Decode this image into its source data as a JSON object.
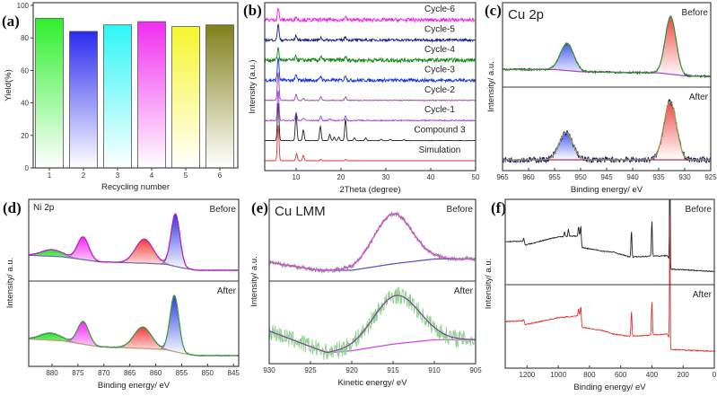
{
  "chart_data": [
    {
      "panel_label": "(a)",
      "type": "bar",
      "categories": [
        "1",
        "2",
        "3",
        "4",
        "5",
        "6"
      ],
      "values": [
        92,
        84,
        88,
        90,
        87,
        88
      ],
      "colors": [
        "#22ee22",
        "#2020ee",
        "#22f5f5",
        "#f022f0",
        "#f5f522",
        "#7a7a10"
      ],
      "xlabel": "Recycling number",
      "ylabel": "Yield(%)",
      "ylim": [
        0,
        100
      ],
      "yticks": [
        "0",
        "20",
        "40",
        "60",
        "80",
        "100"
      ],
      "grid": false
    },
    {
      "panel_label": "(b)",
      "type": "line",
      "xlabel": "2Theta (degree)",
      "ylabel": "Intensity (a.u.)",
      "xlim": [
        3,
        50
      ],
      "xticks": [
        "10",
        "20",
        "30",
        "40",
        "50"
      ],
      "grid": false,
      "series": [
        {
          "name": "Simulation",
          "color": "#e03030",
          "noise": 0.0,
          "peaks": [
            [
              6,
              2.0
            ],
            [
              10.1,
              0.4
            ],
            [
              11.6,
              0.3
            ],
            [
              15.5,
              0.08
            ],
            [
              21.1,
              0.07
            ]
          ]
        },
        {
          "name": "Compound 3",
          "color": "#222222",
          "noise": 0.01,
          "peaks": [
            [
              6,
              2.1
            ],
            [
              10,
              1.5
            ],
            [
              11.6,
              0.6
            ],
            [
              15.4,
              0.8
            ],
            [
              17.5,
              0.35
            ],
            [
              18.5,
              0.2
            ],
            [
              19.5,
              0.2
            ],
            [
              21,
              1.2
            ],
            [
              23,
              0.15
            ],
            [
              25.5,
              0.15
            ],
            [
              29,
              0.08
            ],
            [
              31,
              0.08
            ],
            [
              34,
              0.06
            ]
          ]
        },
        {
          "name": "Cycle-1",
          "color": "#9a40f0",
          "noise": 0.03,
          "peaks": [
            [
              6,
              1.7
            ],
            [
              10,
              0.45
            ],
            [
              11.6,
              0.15
            ],
            [
              15.5,
              0.25
            ],
            [
              17.5,
              0.1
            ],
            [
              21,
              0.25
            ]
          ]
        },
        {
          "name": "Cycle-2",
          "color": "#a040b0",
          "noise": 0.02,
          "peaks": [
            [
              6,
              1.6
            ],
            [
              10,
              0.35
            ],
            [
              11.6,
              0.12
            ],
            [
              15.5,
              0.2
            ],
            [
              21,
              0.2
            ]
          ]
        },
        {
          "name": "Cycle-3",
          "color": "#1030e0",
          "noise": 0.09,
          "peaks": [
            [
              6,
              1.3
            ],
            [
              10,
              0.3
            ],
            [
              15.5,
              0.25
            ],
            [
              21,
              0.3
            ]
          ]
        },
        {
          "name": "Cycle-4",
          "color": "#108a10",
          "noise": 0.11,
          "peaks": [
            [
              6,
              0.7
            ],
            [
              10,
              0.2
            ],
            [
              15.5,
              0.2
            ],
            [
              21,
              0.2
            ]
          ]
        },
        {
          "name": "Cycle-5",
          "color": "#102080",
          "noise": 0.07,
          "peaks": [
            [
              6,
              0.9
            ],
            [
              10,
              0.25
            ],
            [
              15.5,
              0.15
            ],
            [
              21,
              0.2
            ]
          ]
        },
        {
          "name": "Cycle-6",
          "color": "#f020e0",
          "noise": 0.1,
          "peaks": [
            [
              6,
              0.65
            ],
            [
              10,
              0.2
            ],
            [
              21,
              0.2
            ]
          ]
        }
      ]
    },
    {
      "panel_label": "(c)",
      "type": "line",
      "title": "Cu 2p",
      "xlabel": "Binding energy/ eV",
      "ylabel": "Intensity/ a.u.",
      "xlim": [
        965,
        925
      ],
      "xticks": [
        "965",
        "960",
        "955",
        "950",
        "945",
        "940",
        "935",
        "930",
        "925"
      ],
      "grid": false,
      "panels": [
        {
          "label": "Before",
          "raw_color": "#1a1a1a",
          "fit_color": "#3a9a3a",
          "bg_color": "#b040d0",
          "noise": 0.015,
          "background": [
            [
              965,
              0.12
            ],
            [
              955,
              0.12
            ],
            [
              950,
              0.08
            ],
            [
              935,
              0.06
            ],
            [
              930,
              0.01
            ],
            [
              925,
              0.0
            ]
          ],
          "peaks": [
            {
              "center": 952.6,
              "height": 0.47,
              "width": 1.3,
              "color": "#4055f0"
            },
            {
              "center": 932.7,
              "height": 1.0,
              "width": 1.05,
              "color": "#f04040"
            }
          ]
        },
        {
          "label": "After",
          "raw_color": "#1a1a80",
          "fit_color": "#a0a040",
          "bg_color": "#c03050",
          "noise": 0.04,
          "background": [
            [
              965,
              0.08
            ],
            [
              925,
              0.08
            ]
          ],
          "peaks": [
            {
              "center": 952.8,
              "height": 0.37,
              "width": 1.3,
              "color": "#4055f0"
            },
            {
              "center": 932.8,
              "height": 0.8,
              "width": 1.2,
              "color": "#f04040"
            }
          ]
        }
      ]
    },
    {
      "panel_label": "(d)",
      "type": "line",
      "title": "Ni 2p",
      "xlabel": "Binding energy/ eV",
      "ylabel": "Intensity/ a.u.",
      "xlim": [
        884.5,
        844
      ],
      "xticks": [
        "880",
        "875",
        "870",
        "865",
        "860",
        "855",
        "850",
        "845"
      ],
      "grid": false,
      "panels": [
        {
          "label": "Before",
          "raw_color": "#3a2a90",
          "fit_color": "#c020c0",
          "bg_color": "#6a70b0",
          "noise": 0.008,
          "background": [
            [
              884.5,
              0.3
            ],
            [
              878,
              0.27
            ],
            [
              871,
              0.17
            ],
            [
              862,
              0.14
            ],
            [
              858,
              0.12
            ],
            [
              855,
              0.05
            ],
            [
              852,
              0.0
            ],
            [
              844,
              0.0
            ]
          ],
          "peaks": [
            {
              "center": 880,
              "height": 0.13,
              "width": 2.0,
              "color": "#20e020"
            },
            {
              "center": 874,
              "height": 0.45,
              "width": 1.1,
              "color": "#f020f0"
            },
            {
              "center": 862.2,
              "height": 0.48,
              "width": 1.7,
              "color": "#f03030"
            },
            {
              "center": 856.2,
              "height": 1.05,
              "width": 0.85,
              "color": "#2030e0"
            }
          ]
        },
        {
          "label": "After",
          "raw_color": "#303070",
          "fit_color": "#40a040",
          "bg_color": "#c0a070",
          "noise": 0.008,
          "background": [
            [
              884.5,
              0.28
            ],
            [
              878,
              0.25
            ],
            [
              871,
              0.15
            ],
            [
              862,
              0.12
            ],
            [
              858,
              0.1
            ],
            [
              855,
              0.04
            ],
            [
              852,
              0.0
            ],
            [
              844,
              0.0
            ]
          ],
          "peaks": [
            {
              "center": 880.3,
              "height": 0.12,
              "width": 2.0,
              "color": "#20e020"
            },
            {
              "center": 874,
              "height": 0.38,
              "width": 1.1,
              "color": "#f020f0"
            },
            {
              "center": 862.5,
              "height": 0.36,
              "width": 1.7,
              "color": "#f03030"
            },
            {
              "center": 856.4,
              "height": 0.95,
              "width": 0.85,
              "color": "#2030e0"
            }
          ]
        }
      ]
    },
    {
      "panel_label": "(e)",
      "type": "line",
      "title": "Cu LMM",
      "xlabel": "Kinetic energy/ eV",
      "ylabel": "Intensity/ a.u.",
      "xlim": [
        930,
        905
      ],
      "xticks": [
        "930",
        "925",
        "920",
        "915",
        "910",
        "905"
      ],
      "grid": false,
      "panels": [
        {
          "label": "Before",
          "raw_color": "#909090",
          "fit_color": "#e040e0",
          "bg_color": "#5050c0",
          "noise": 0.03,
          "background": [
            [
              930,
              0.22
            ],
            [
              924,
              0.12
            ],
            [
              920,
              0.12
            ],
            [
              915,
              0.2
            ],
            [
              910,
              0.26
            ],
            [
              905,
              0.26
            ]
          ],
          "peaks": [
            {
              "center": 915,
              "height": 0.62,
              "width": 2.3,
              "color": "none"
            }
          ]
        },
        {
          "label": "After",
          "raw_color": "#90d090",
          "fit_color": "#8040a0",
          "bg_color": "#d040e0",
          "noise": 0.04,
          "background": [
            [
              930,
              0.2
            ],
            [
              923,
              0.1
            ],
            [
              920,
              0.11
            ],
            [
              915,
              0.14
            ],
            [
              910,
              0.16
            ],
            [
              905,
              0.16
            ]
          ],
          "peaks": [
            {
              "center": 914.6,
              "height": 0.22,
              "width": 2.8,
              "color": "none"
            }
          ]
        }
      ]
    },
    {
      "panel_label": "(f)",
      "type": "line",
      "xlabel": "Binding energy/ eV",
      "ylabel": "Intensity/ a.u.",
      "xlim": [
        1340,
        0
      ],
      "xticks": [
        "1200",
        "1000",
        "800",
        "600",
        "400",
        "200",
        "0"
      ],
      "ylim": [
        0,
        1.2
      ],
      "grid": false,
      "panels": [
        {
          "label": "Before",
          "raw_color": "#222222",
          "noise": 0.01,
          "background": [
            [
              1340,
              0.62
            ],
            [
              1228,
              0.63
            ],
            [
              1222,
              0.7
            ],
            [
              1212,
              0.55
            ],
            [
              1000,
              0.72
            ],
            [
              860,
              0.74
            ],
            [
              852,
              0.5
            ],
            [
              710,
              0.42
            ],
            [
              645,
              0.4
            ],
            [
              540,
              0.3
            ],
            [
              300,
              0.33
            ],
            [
              288,
              0.25
            ],
            [
              282,
              0.05
            ],
            [
              0,
              0.0
            ]
          ],
          "peaks": [
            {
              "center": 960,
              "height": 0.1,
              "width": 3
            },
            {
              "center": 935,
              "height": 0.15,
              "width": 3
            },
            {
              "center": 870,
              "height": 0.2,
              "width": 3
            },
            {
              "center": 855,
              "height": 0.35,
              "width": 3
            },
            {
              "center": 531,
              "height": 0.55,
              "width": 3
            },
            {
              "center": 400,
              "height": 0.75,
              "width": 3
            },
            {
              "center": 285,
              "height": 3,
              "width": 2
            }
          ]
        },
        {
          "label": "After",
          "raw_color": "#e03030",
          "noise": 0.01,
          "background": [
            [
              1340,
              0.72
            ],
            [
              1228,
              0.73
            ],
            [
              1222,
              0.78
            ],
            [
              1212,
              0.65
            ],
            [
              1000,
              0.8
            ],
            [
              860,
              0.84
            ],
            [
              852,
              0.6
            ],
            [
              710,
              0.52
            ],
            [
              645,
              0.45
            ],
            [
              540,
              0.4
            ],
            [
              300,
              0.45
            ],
            [
              288,
              0.35
            ],
            [
              282,
              0.12
            ],
            [
              0,
              0.08
            ]
          ],
          "peaks": [
            {
              "center": 870,
              "height": 0.15,
              "width": 3
            },
            {
              "center": 855,
              "height": 0.35,
              "width": 3
            },
            {
              "center": 531,
              "height": 0.55,
              "width": 3
            },
            {
              "center": 400,
              "height": 0.75,
              "width": 3
            },
            {
              "center": 285,
              "height": 3,
              "width": 2
            }
          ]
        }
      ]
    }
  ]
}
